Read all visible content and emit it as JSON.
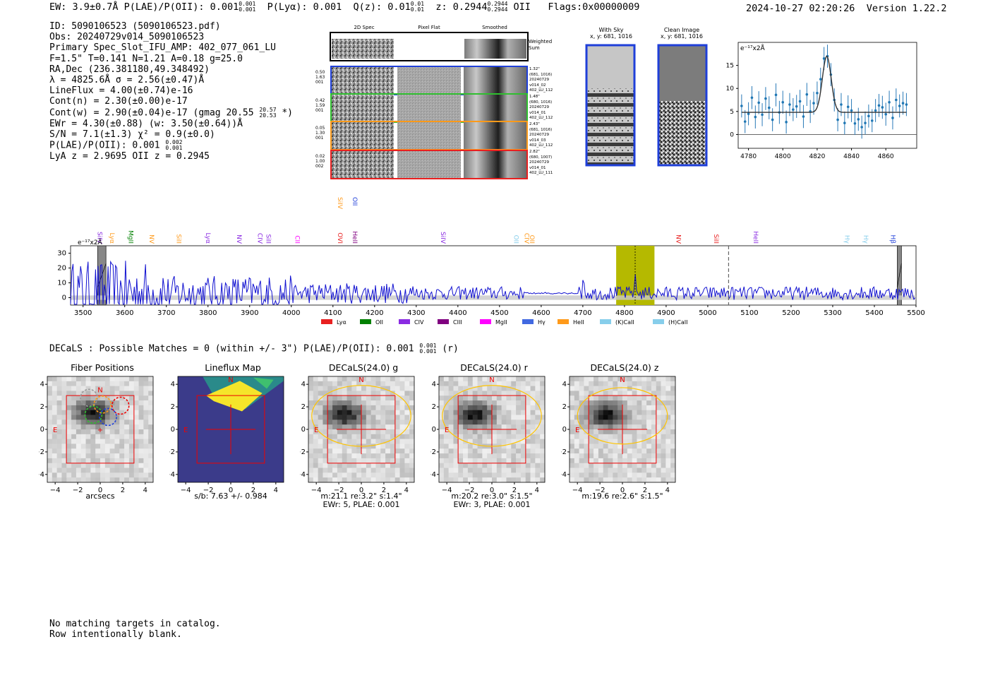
{
  "header": {
    "summary": "EW: 3.9±0.7Å  P(LAE)/P(OII): 0.001",
    "plae_sup": "0.001",
    "plae_sub": "0.001",
    "plya": "P(Lyα): 0.001",
    "qz": "Q(z): 0.01",
    "qz_sup": "0.01",
    "qz_sub": "0.01",
    "z": "z: 0.2944",
    "z_sup": "0.2944",
    "z_sub": "0.2944",
    "z_line": "OII",
    "flags": "Flags:0x00000009",
    "datetime": "2024-10-27 02:20:26",
    "version": "Version 1.22.2"
  },
  "info": {
    "id": "ID: 5090106523 (5090106523.pdf)",
    "obs": "Obs: 20240729v014_5090106523",
    "primary": "Primary Spec_Slot_IFU_AMP: 402_077_061_LU",
    "fit": "F=1.5\"  T=0.141  N=1.21  A=0.18  g=25.0",
    "radec": "RA,Dec (236.381180,49.348492)",
    "lambda": "λ = 4825.6Å   σ = 2.56(±0.47)Å",
    "lineflux": "LineFlux = 4.00(±0.74)e-16",
    "contn": "Cont(n) = 2.30(±0.00)e-17",
    "contw": "Cont(w) = 2.90(±0.04)e-17 (gmag 20.55",
    "contw_sup": "20.57",
    "contw_sub": "20.53",
    "contw_tail": "*)",
    "ewr": "EWr = 4.30(±0.88) (w: 3.50(±0.64))Å",
    "sn": "S/N = 7.1(±1.3)  χ² = 0.9(±0.0)",
    "plae": "P(LAE)/P(OII): 0.001",
    "plae_sup": "0.002",
    "plae_sub": "0.001",
    "lya": "LyA z = 2.9695   OII z = 0.2945"
  },
  "cutouts": {
    "col_titles": [
      "2D Spec",
      "Pixel Flat",
      "Smoothed"
    ],
    "weighted_sum": [
      "Weighted",
      "Sum"
    ],
    "rows": [
      {
        "left": [
          "0.50",
          "1.63",
          "001"
        ],
        "right": [
          "1.32\"",
          "(681, 1016)",
          "20240729",
          "v014_02",
          "402_LU_112"
        ],
        "color": "#1f3fd9"
      },
      {
        "left": [
          "0.42",
          "1.59",
          "001"
        ],
        "right": [
          "1.48\"",
          "(680, 1016)",
          "20240729",
          "v014_01",
          "402_LU_112"
        ],
        "color": "#2fbf2f"
      },
      {
        "left": [
          "0.05",
          "1.30",
          "001"
        ],
        "right": [
          "2.43\"",
          "(681, 1016)",
          "20240729",
          "v014_03",
          "402_LU_112"
        ],
        "color": "#ff9a1a"
      },
      {
        "left": [
          "0.02",
          "1.00",
          "002"
        ],
        "right": [
          "2.82\"",
          "(680, 1007)",
          "20240729",
          "v014_01",
          "402_LU_111"
        ],
        "color": "#e82020"
      }
    ],
    "with_sky": [
      "With Sky",
      "x, y: 681, 1016"
    ],
    "clean_image": [
      "Clean Image",
      "x, y: 681, 1016"
    ]
  },
  "zoom_chart": {
    "type": "scatter",
    "title": "e⁻¹⁷x2Å",
    "xlim": [
      4774,
      4878
    ],
    "ylim": [
      -3,
      20
    ],
    "xticks": [
      4780,
      4800,
      4820,
      4840,
      4860
    ],
    "yticks": [
      0,
      5,
      10,
      15
    ],
    "x": [
      4776,
      4778,
      4780,
      4782,
      4784,
      4786,
      4788,
      4790,
      4792,
      4794,
      4796,
      4798,
      4800,
      4802,
      4804,
      4806,
      4808,
      4810,
      4812,
      4814,
      4816,
      4818,
      4820,
      4822,
      4824,
      4826,
      4828,
      4830,
      4832,
      4834,
      4836,
      4838,
      4840,
      4842,
      4844,
      4846,
      4848,
      4850,
      4852,
      4854,
      4856,
      4858,
      4860,
      4862,
      4864,
      4866,
      4868,
      4870,
      4872
    ],
    "y": [
      6.2,
      2.8,
      4.5,
      8.0,
      3.8,
      6.9,
      4.3,
      7.8,
      5.8,
      3.2,
      8.6,
      4.8,
      7.0,
      2.7,
      6.5,
      5.4,
      6.1,
      7.2,
      3.9,
      8.7,
      5.0,
      6.8,
      9.0,
      12.0,
      16.5,
      17.0,
      13.0,
      7.5,
      3.2,
      6.5,
      2.5,
      6.0,
      5.2,
      2.4,
      3.3,
      1.6,
      2.5,
      4.0,
      3.0,
      5.2,
      6.3,
      5.9,
      4.4,
      7.0,
      3.6,
      7.5,
      6.2,
      6.8,
      6.5
    ],
    "err": [
      2.5,
      2.5,
      2.5,
      2.5,
      2.5,
      2.5,
      2.5,
      2.5,
      2.5,
      2.5,
      2.5,
      2.5,
      2.5,
      2.5,
      2.5,
      2.5,
      2.5,
      2.5,
      2.5,
      2.5,
      2.5,
      2.5,
      2.5,
      2.5,
      2.5,
      2.5,
      2.5,
      2.5,
      2.5,
      2.5,
      2.5,
      2.5,
      2.5,
      2.5,
      2.5,
      2.5,
      2.5,
      2.5,
      2.5,
      2.5,
      2.5,
      2.5,
      2.5,
      2.5,
      2.5,
      2.5,
      2.5,
      2.5,
      2.5
    ],
    "fit": {
      "continuum": 4.8,
      "amplitude": 12.2,
      "center": 4825.6,
      "sigma": 2.56,
      "xrange": [
        4776,
        4872
      ]
    }
  },
  "spectrum_chart": {
    "type": "line",
    "title": "e⁻¹⁷x2Å",
    "xlim": [
      3470,
      5500
    ],
    "ylim": [
      -5,
      35
    ],
    "xticks": [
      3500,
      3600,
      3700,
      3800,
      3900,
      4000,
      4100,
      4200,
      4300,
      4400,
      4500,
      4600,
      4700,
      4800,
      4900,
      5000,
      5100,
      5200,
      5300,
      5400,
      5500
    ],
    "yticks": [
      0,
      10,
      20,
      30
    ],
    "highlight": {
      "from": 4780,
      "to": 4872,
      "color": "#b5b900"
    },
    "line_center": 4825.6,
    "dashed_line": 5050,
    "bad_regions": [
      [
        3535,
        3555
      ],
      [
        5455,
        5465
      ]
    ],
    "line_labels_top": [
      {
        "x": 4112,
        "text": "SiIV",
        "color": "#ff9a1a"
      },
      {
        "x": 4148,
        "text": "OII",
        "color": "#1f3fd9"
      }
    ],
    "line_labels": [
      {
        "x": 3535,
        "text": "SiIV",
        "color": "#8a2be2"
      },
      {
        "x": 3565,
        "text": "Lyα",
        "color": "#ff9a1a"
      },
      {
        "x": 3610,
        "text": "MgII",
        "color": "#008000"
      },
      {
        "x": 3660,
        "text": "NV",
        "color": "#ff9a1a"
      },
      {
        "x": 3725,
        "text": "SiII",
        "color": "#ff9a1a"
      },
      {
        "x": 3795,
        "text": "Lyα",
        "color": "#8a2be2"
      },
      {
        "x": 3870,
        "text": "NV",
        "color": "#8a2be2"
      },
      {
        "x": 3920,
        "text": "CIV",
        "color": "#8a2be2"
      },
      {
        "x": 3940,
        "text": "SiII",
        "color": "#8a2be2"
      },
      {
        "x": 4010,
        "text": "CII",
        "color": "#ff00ff"
      },
      {
        "x": 4112,
        "text": "OVI",
        "color": "#e82020"
      },
      {
        "x": 4148,
        "text": "HeII",
        "color": "#800080"
      },
      {
        "x": 4360,
        "text": "SiIV",
        "color": "#8a2be2"
      },
      {
        "x": 4535,
        "text": "OII",
        "color": "#87ceeb"
      },
      {
        "x": 4560,
        "text": "CIV",
        "color": "#ff9a1a"
      },
      {
        "x": 4573,
        "text": "OII",
        "color": "#ff9a1a"
      },
      {
        "x": 4925,
        "text": "NV",
        "color": "#e82020"
      },
      {
        "x": 5015,
        "text": "SiII",
        "color": "#e82020"
      },
      {
        "x": 5110,
        "text": "HeII",
        "color": "#8a2be2"
      },
      {
        "x": 5330,
        "text": "Hγ",
        "color": "#87ceeb"
      },
      {
        "x": 5375,
        "text": "Hγ",
        "color": "#87ceeb"
      },
      {
        "x": 5440,
        "text": "Hβ",
        "color": "#1f3fd9"
      }
    ],
    "legend": [
      {
        "label": "Lyα",
        "color": "#e82020"
      },
      {
        "label": "OII",
        "color": "#008000"
      },
      {
        "label": "CIV",
        "color": "#8a2be2"
      },
      {
        "label": "CIII",
        "color": "#800080"
      },
      {
        "label": "MgII",
        "color": "#ff00ff"
      },
      {
        "label": "Hγ",
        "color": "#4169e1"
      },
      {
        "label": "HeII",
        "color": "#ff9a1a"
      },
      {
        "label": "(K)CaII",
        "color": "#87ceeb"
      },
      {
        "label": "(H)CaII",
        "color": "#87ceeb"
      }
    ]
  },
  "decals": {
    "title": "DECaLS : Possible Matches = 0 (within +/- 3\")  P(LAE)/P(OII): 0.001",
    "sup": "0.001",
    "sub": "0.001",
    "tail": "(r)",
    "panels": [
      {
        "title": "Fiber Positions",
        "caption": [
          "arcsecs"
        ],
        "kind": "fiber"
      },
      {
        "title": "Lineflux Map",
        "caption": [
          "s/b: 7.63 +/- 0.984"
        ],
        "kind": "lineflux"
      },
      {
        "title": "DECaLS(24.0) g",
        "caption": [
          "m:21.1  re:3.2\"  s:1.4\"",
          "EWr: 5, PLAE: 0.001"
        ],
        "kind": "band"
      },
      {
        "title": "DECaLS(24.0) r",
        "caption": [
          "m:20.2  re:3.0\"  s:1.5\"",
          "EWr: 3, PLAE: 0.001"
        ],
        "kind": "band"
      },
      {
        "title": "DECaLS(24.0) z",
        "caption": [
          "m:19.6  re:2.6\"  s:1.5\""
        ],
        "kind": "band"
      }
    ],
    "ticks": [
      -4,
      -2,
      0,
      2,
      4
    ],
    "north": "N",
    "east": "E"
  },
  "footer": {
    "line1": "No matching targets in catalog.",
    "line2": "Row intentionally blank."
  }
}
